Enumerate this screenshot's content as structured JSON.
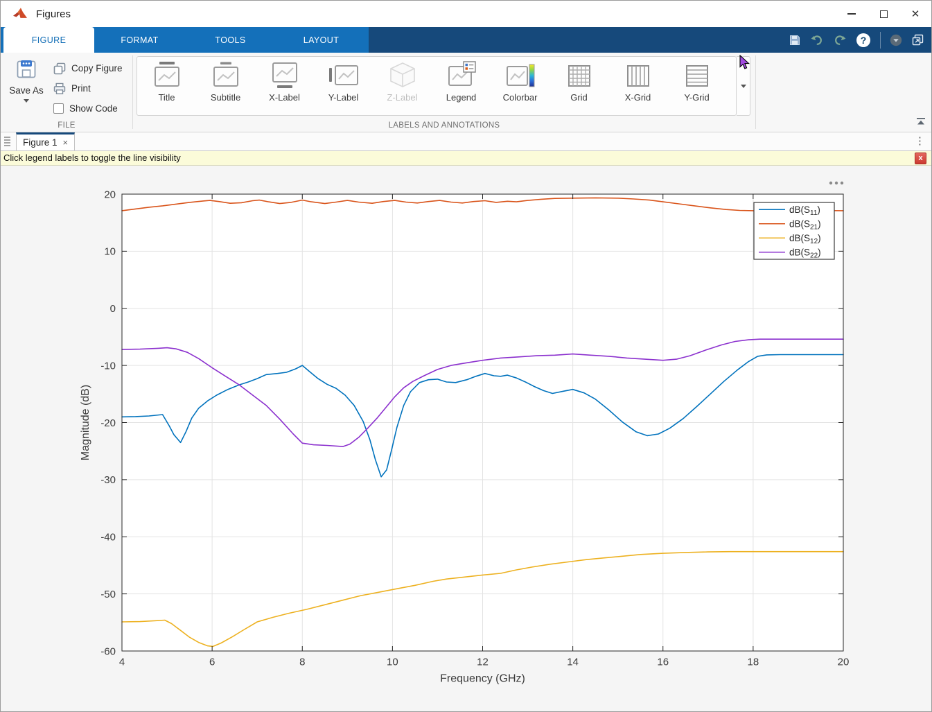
{
  "window": {
    "title": "Figures"
  },
  "ribbon": {
    "tabs": [
      {
        "label": "FIGURE",
        "active": true
      },
      {
        "label": "FORMAT",
        "active": false
      },
      {
        "label": "TOOLS",
        "active": false
      },
      {
        "label": "LAYOUT",
        "active": false
      }
    ]
  },
  "toolstrip": {
    "file": {
      "section_label": "FILE",
      "save_as": "Save As",
      "copy_figure": "Copy Figure",
      "print": "Print",
      "show_code": "Show Code",
      "show_code_checked": false
    },
    "labels_annotations": {
      "section_label": "LABELS AND ANNOTATIONS",
      "items": [
        {
          "label": "Title",
          "disabled": false
        },
        {
          "label": "Subtitle",
          "disabled": false
        },
        {
          "label": "X-Label",
          "disabled": false
        },
        {
          "label": "Y-Label",
          "disabled": false
        },
        {
          "label": "Z-Label",
          "disabled": true
        },
        {
          "label": "Legend",
          "disabled": false
        },
        {
          "label": "Colorbar",
          "disabled": false
        },
        {
          "label": "Grid",
          "disabled": false
        },
        {
          "label": "X-Grid",
          "disabled": false
        },
        {
          "label": "Y-Grid",
          "disabled": false
        }
      ]
    }
  },
  "tabbar": {
    "tab_label": "Figure 1",
    "close_glyph": "×"
  },
  "banner": {
    "text": "Click legend labels to toggle the line visibility",
    "close_glyph": "x"
  },
  "chart_data": {
    "type": "line",
    "title": "",
    "xlabel": "Frequency (GHz)",
    "ylabel": "Magnitude (dB)",
    "xlim": [
      4,
      20
    ],
    "ylim": [
      -60,
      20
    ],
    "xticks": [
      4,
      6,
      8,
      10,
      12,
      14,
      16,
      18,
      20
    ],
    "yticks": [
      -60,
      -50,
      -40,
      -30,
      -20,
      -10,
      0,
      10,
      20
    ],
    "grid": true,
    "legend_position": "northeast",
    "series": [
      {
        "key": "dbS11",
        "legend_base": "dB(S",
        "legend_sub": "11",
        "legend_suffix": ")",
        "color": "#0072BD",
        "points": [
          [
            4,
            -19
          ],
          [
            4.3,
            -18.95
          ],
          [
            4.6,
            -18.85
          ],
          [
            4.9,
            -18.6
          ],
          [
            5.05,
            -20.6
          ],
          [
            5.15,
            -22.1
          ],
          [
            5.3,
            -23.5
          ],
          [
            5.42,
            -21.6
          ],
          [
            5.55,
            -19.2
          ],
          [
            5.7,
            -17.5
          ],
          [
            5.9,
            -16.2
          ],
          [
            6.1,
            -15.2
          ],
          [
            6.35,
            -14.2
          ],
          [
            6.6,
            -13.4
          ],
          [
            6.8,
            -12.9
          ],
          [
            7,
            -12.3
          ],
          [
            7.2,
            -11.6
          ],
          [
            7.45,
            -11.4
          ],
          [
            7.65,
            -11.2
          ],
          [
            7.85,
            -10.6
          ],
          [
            8,
            -10
          ],
          [
            8.15,
            -11
          ],
          [
            8.35,
            -12.3
          ],
          [
            8.55,
            -13.3
          ],
          [
            8.75,
            -14
          ],
          [
            8.95,
            -15.2
          ],
          [
            9.15,
            -17
          ],
          [
            9.35,
            -19.8
          ],
          [
            9.5,
            -23
          ],
          [
            9.62,
            -26.5
          ],
          [
            9.75,
            -29.5
          ],
          [
            9.87,
            -28.3
          ],
          [
            9.98,
            -24.8
          ],
          [
            10.1,
            -20.8
          ],
          [
            10.25,
            -17
          ],
          [
            10.4,
            -14.6
          ],
          [
            10.6,
            -13
          ],
          [
            10.8,
            -12.5
          ],
          [
            11,
            -12.4
          ],
          [
            11.2,
            -12.9
          ],
          [
            11.4,
            -13
          ],
          [
            11.65,
            -12.5
          ],
          [
            11.85,
            -11.9
          ],
          [
            12.05,
            -11.4
          ],
          [
            12.25,
            -11.8
          ],
          [
            12.4,
            -11.9
          ],
          [
            12.55,
            -11.7
          ],
          [
            12.75,
            -12.2
          ],
          [
            12.95,
            -12.9
          ],
          [
            13.15,
            -13.7
          ],
          [
            13.35,
            -14.4
          ],
          [
            13.55,
            -14.9
          ],
          [
            13.8,
            -14.5
          ],
          [
            14,
            -14.2
          ],
          [
            14.25,
            -14.8
          ],
          [
            14.5,
            -15.9
          ],
          [
            14.8,
            -17.8
          ],
          [
            15.1,
            -19.9
          ],
          [
            15.4,
            -21.6
          ],
          [
            15.65,
            -22.3
          ],
          [
            15.9,
            -22
          ],
          [
            16.15,
            -21
          ],
          [
            16.45,
            -19.3
          ],
          [
            16.75,
            -17.2
          ],
          [
            17.05,
            -15
          ],
          [
            17.35,
            -12.8
          ],
          [
            17.65,
            -10.8
          ],
          [
            17.9,
            -9.3
          ],
          [
            18.1,
            -8.4
          ],
          [
            18.3,
            -8.15
          ],
          [
            18.6,
            -8.1
          ],
          [
            19.2,
            -8.1
          ],
          [
            20,
            -8.1
          ]
        ]
      },
      {
        "key": "dbS21",
        "legend_base": "dB(S",
        "legend_sub": "21",
        "legend_suffix": ")",
        "color": "#D95319",
        "points": [
          [
            4,
            17.1
          ],
          [
            4.3,
            17.4
          ],
          [
            4.6,
            17.7
          ],
          [
            4.9,
            17.95
          ],
          [
            5.2,
            18.25
          ],
          [
            5.5,
            18.55
          ],
          [
            5.8,
            18.8
          ],
          [
            5.95,
            18.9
          ],
          [
            6.15,
            18.7
          ],
          [
            6.4,
            18.4
          ],
          [
            6.65,
            18.5
          ],
          [
            6.9,
            18.85
          ],
          [
            7.05,
            18.95
          ],
          [
            7.25,
            18.65
          ],
          [
            7.5,
            18.35
          ],
          [
            7.75,
            18.55
          ],
          [
            8,
            18.95
          ],
          [
            8.2,
            18.65
          ],
          [
            8.5,
            18.35
          ],
          [
            8.75,
            18.6
          ],
          [
            9,
            18.9
          ],
          [
            9.25,
            18.6
          ],
          [
            9.55,
            18.4
          ],
          [
            9.8,
            18.7
          ],
          [
            10.05,
            18.9
          ],
          [
            10.3,
            18.6
          ],
          [
            10.55,
            18.45
          ],
          [
            10.8,
            18.7
          ],
          [
            11.05,
            18.9
          ],
          [
            11.3,
            18.6
          ],
          [
            11.55,
            18.45
          ],
          [
            11.8,
            18.7
          ],
          [
            12.05,
            18.85
          ],
          [
            12.3,
            18.55
          ],
          [
            12.55,
            18.75
          ],
          [
            12.75,
            18.65
          ],
          [
            13,
            18.9
          ],
          [
            13.3,
            19.1
          ],
          [
            13.6,
            19.25
          ],
          [
            14,
            19.3
          ],
          [
            14.5,
            19.35
          ],
          [
            15,
            19.3
          ],
          [
            15.35,
            19.15
          ],
          [
            15.7,
            18.95
          ],
          [
            16,
            18.65
          ],
          [
            16.35,
            18.3
          ],
          [
            16.7,
            17.95
          ],
          [
            17.05,
            17.6
          ],
          [
            17.4,
            17.3
          ],
          [
            17.7,
            17.15
          ],
          [
            18,
            17.1
          ],
          [
            18.5,
            17.1
          ],
          [
            19.2,
            17.15
          ],
          [
            20,
            17.1
          ]
        ]
      },
      {
        "key": "dbS12",
        "legend_base": "dB(S",
        "legend_sub": "12",
        "legend_suffix": ")",
        "color": "#EDB120",
        "points": [
          [
            4,
            -54.9
          ],
          [
            4.4,
            -54.85
          ],
          [
            4.75,
            -54.7
          ],
          [
            4.95,
            -54.6
          ],
          [
            5.1,
            -55.2
          ],
          [
            5.3,
            -56.4
          ],
          [
            5.5,
            -57.6
          ],
          [
            5.7,
            -58.5
          ],
          [
            5.9,
            -59.1
          ],
          [
            6.02,
            -59.2
          ],
          [
            6.2,
            -58.6
          ],
          [
            6.45,
            -57.5
          ],
          [
            6.7,
            -56.3
          ],
          [
            7,
            -54.9
          ],
          [
            7.35,
            -54.1
          ],
          [
            7.7,
            -53.4
          ],
          [
            8.1,
            -52.7
          ],
          [
            8.5,
            -51.9
          ],
          [
            8.9,
            -51.1
          ],
          [
            9.3,
            -50.3
          ],
          [
            9.7,
            -49.7
          ],
          [
            10.1,
            -49.1
          ],
          [
            10.5,
            -48.5
          ],
          [
            10.9,
            -47.8
          ],
          [
            11.2,
            -47.4
          ],
          [
            11.55,
            -47.1
          ],
          [
            12,
            -46.7
          ],
          [
            12.4,
            -46.4
          ],
          [
            12.75,
            -45.8
          ],
          [
            13.1,
            -45.3
          ],
          [
            13.5,
            -44.8
          ],
          [
            13.9,
            -44.4
          ],
          [
            14.3,
            -44
          ],
          [
            14.7,
            -43.7
          ],
          [
            15.1,
            -43.4
          ],
          [
            15.5,
            -43.1
          ],
          [
            16,
            -42.9
          ],
          [
            16.5,
            -42.75
          ],
          [
            17,
            -42.65
          ],
          [
            17.5,
            -42.6
          ],
          [
            18.2,
            -42.6
          ],
          [
            19,
            -42.6
          ],
          [
            20,
            -42.6
          ]
        ]
      },
      {
        "key": "dbS22",
        "legend_base": "dB(S",
        "legend_sub": "22",
        "legend_suffix": ")",
        "color": "#8B30CE",
        "points": [
          [
            4,
            -7.2
          ],
          [
            4.4,
            -7.15
          ],
          [
            4.8,
            -7
          ],
          [
            5,
            -6.9
          ],
          [
            5.2,
            -7.1
          ],
          [
            5.45,
            -7.7
          ],
          [
            5.7,
            -8.8
          ],
          [
            6,
            -10.4
          ],
          [
            6.3,
            -11.9
          ],
          [
            6.6,
            -13.4
          ],
          [
            6.9,
            -15.2
          ],
          [
            7.2,
            -17
          ],
          [
            7.5,
            -19.4
          ],
          [
            7.8,
            -22
          ],
          [
            8,
            -23.6
          ],
          [
            8.25,
            -23.9
          ],
          [
            8.55,
            -24
          ],
          [
            8.9,
            -24.2
          ],
          [
            9.05,
            -23.8
          ],
          [
            9.25,
            -22.6
          ],
          [
            9.45,
            -21
          ],
          [
            9.65,
            -19.3
          ],
          [
            9.85,
            -17.4
          ],
          [
            10.05,
            -15.5
          ],
          [
            10.25,
            -13.9
          ],
          [
            10.45,
            -12.8
          ],
          [
            10.7,
            -11.8
          ],
          [
            11,
            -10.7
          ],
          [
            11.3,
            -10
          ],
          [
            11.6,
            -9.6
          ],
          [
            12,
            -9.1
          ],
          [
            12.4,
            -8.7
          ],
          [
            12.8,
            -8.5
          ],
          [
            13.2,
            -8.3
          ],
          [
            13.6,
            -8.2
          ],
          [
            14,
            -8
          ],
          [
            14.4,
            -8.2
          ],
          [
            14.8,
            -8.4
          ],
          [
            15.2,
            -8.7
          ],
          [
            15.6,
            -8.9
          ],
          [
            16,
            -9.1
          ],
          [
            16.3,
            -8.9
          ],
          [
            16.6,
            -8.3
          ],
          [
            16.95,
            -7.3
          ],
          [
            17.3,
            -6.4
          ],
          [
            17.6,
            -5.8
          ],
          [
            17.9,
            -5.5
          ],
          [
            18.15,
            -5.4
          ],
          [
            19,
            -5.4
          ],
          [
            20,
            -5.4
          ]
        ]
      }
    ]
  }
}
